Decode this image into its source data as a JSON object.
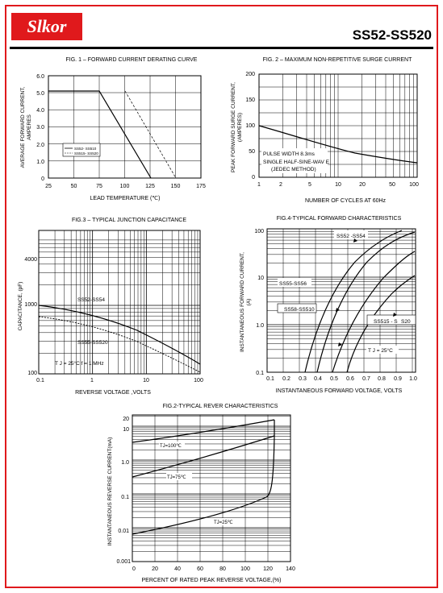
{
  "header": {
    "logo": "Slkor",
    "part_number": "SS52-SS520"
  },
  "fig1": {
    "title": "FIG. 1 – FORWARD CURRENT DERATING CURVE",
    "ylabel1": "AVERAGE FORWARD CURRENT,",
    "ylabel2": "AMPERES",
    "xlabel": "LEAD  TEMPERATURE  (℃)",
    "legend": [
      "SS52- SS510",
      "SS515- SS520"
    ],
    "xticks": [
      "25",
      "50",
      "75",
      "100",
      "125",
      "150",
      "175"
    ],
    "yticks": [
      "0",
      "1.0",
      "2.0",
      "3.0",
      "4.0",
      "5.0",
      "6.0"
    ]
  },
  "fig2": {
    "title": "FIG. 2 – MAXIMUM NON-REPETITIVE SURGE CURRENT",
    "ylabel1": "PEAK FORWARD SURGE CURRENT,",
    "ylabel2": "(AMPERES)",
    "xlabel": "NUMBER OF CYCLES AT 60Hz",
    "note": [
      "PULSE WIDTH 8.3ms",
      "SINGLE  HALF-SINE-WAV E",
      "(JEDEC METHOD)"
    ],
    "xticks": [
      "1",
      "2",
      "5",
      "10",
      "20",
      "50",
      "100"
    ],
    "yticks": [
      "0",
      "50",
      "100",
      "150",
      "200"
    ]
  },
  "fig3": {
    "title": "FIG.3 – TYPICAL JUNCTION CAPACITANCE",
    "ylabel": "CAPACITANCE, (pF)",
    "xlabel": "REVERSE VOLTAGE ,VOLTS",
    "labels": [
      "SS52-SS54",
      "SS55-SS520",
      "T J  = 25°C   f = 1 MHz"
    ],
    "xticks": [
      "0.1",
      "1",
      "10",
      "100"
    ],
    "yticks": [
      "100",
      "1000",
      "4000"
    ]
  },
  "fig4": {
    "title": "FIG.4-TYPICAL   FORWARD   CHARACTERISTICS",
    "ylabel1": "INSTANTANEOUS FORWARD CURRENT,",
    "ylabel2": "(A)",
    "xlabel": "INSTANTANEOUS FORWARD VOLTAGE, VOLTS",
    "labels": [
      "SS52 -SS54",
      "SS55-SS56",
      "SS58-SS510",
      "SS515 - S",
      "S20",
      "T J  = 25°C"
    ],
    "xticks": [
      "0.1",
      "0.2",
      "0.3",
      "0.4",
      "0.5",
      "0.6",
      "0.7",
      "0.8",
      "0.9",
      "1.0"
    ],
    "yticks": [
      "0.1",
      "1.0",
      "10",
      "100"
    ]
  },
  "fig5": {
    "title": "FIG.2-TYPICAL REVER CHARACTERISTICS",
    "ylabel": "INSTANTANEOUS REVERSE CURRENT(mA)",
    "xlabel": "PERCENT OF RATED PEAK REVERSE VOLTAGE,(%)",
    "labels": [
      "TJ=100℃",
      "TJ=75℃",
      "TJ=25℃"
    ],
    "xticks": [
      "0",
      "20",
      "40",
      "60",
      "80",
      "100",
      "120",
      "140"
    ],
    "yticks": [
      "0.001",
      "0.01",
      "0.1",
      "1.0",
      "10",
      "20"
    ]
  }
}
